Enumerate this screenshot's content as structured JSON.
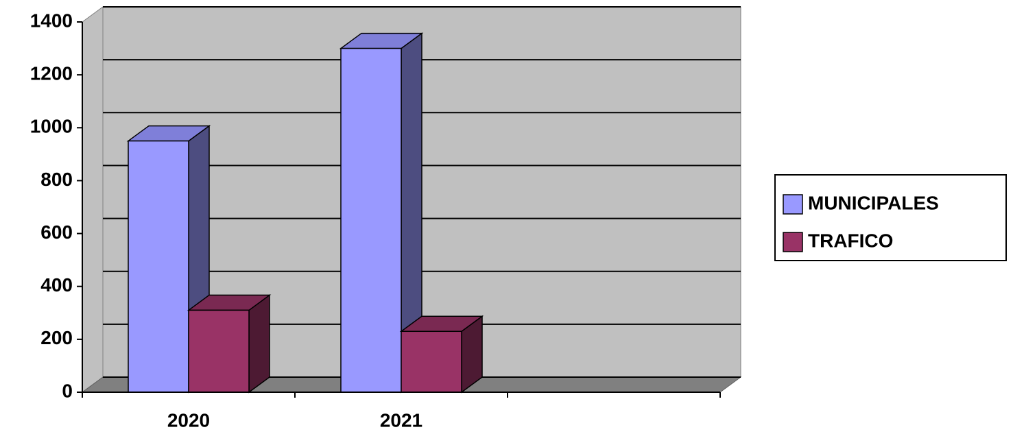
{
  "chart_data": {
    "type": "bar3d",
    "categories": [
      "2020",
      "2021",
      null
    ],
    "series": [
      {
        "name": "MUNICIPALES",
        "color": "#9999ff",
        "side": "#4d4d80",
        "top": "#7f7fd9",
        "values": [
          950,
          1300,
          null
        ]
      },
      {
        "name": "TRAFICO",
        "color": "#993366",
        "side": "#4d1a33",
        "top": "#7a2952",
        "values": [
          310,
          230,
          null
        ]
      }
    ],
    "ylim": [
      0,
      1400
    ],
    "yticks": [
      0,
      200,
      400,
      600,
      800,
      1000,
      1200,
      1400
    ],
    "grid": true,
    "legend": "right"
  }
}
